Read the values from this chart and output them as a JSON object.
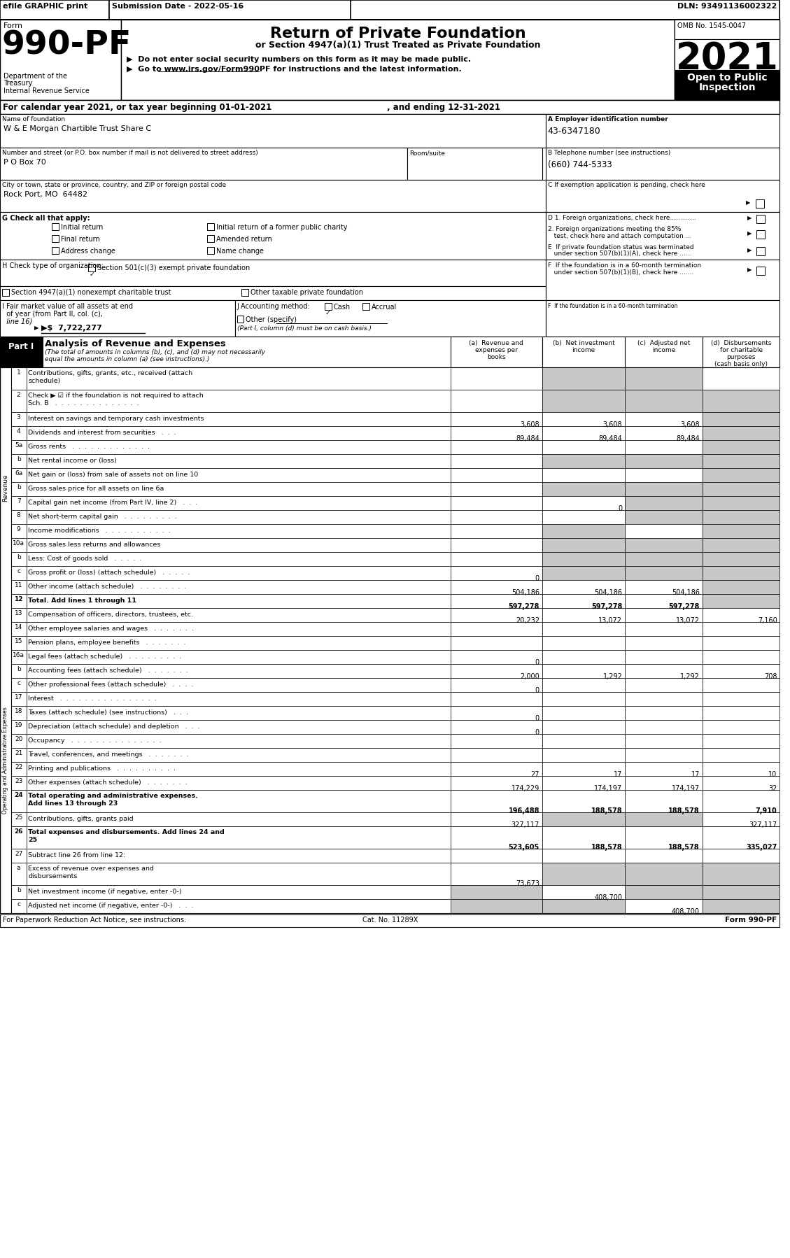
{
  "title_form": "990-PF",
  "title_main": "Return of Private Foundation",
  "title_sub": "or Section 4947(a)(1) Trust Treated as Private Foundation",
  "bullet1": "▶  Do not enter social security numbers on this form as it may be made public.",
  "bullet2": "▶  Go to www.irs.gov/Form990PF for instructions and the latest information.",
  "year": "2021",
  "open_text": "Open to Public\nInspection",
  "efile_text": "efile GRAPHIC print",
  "submission_text": "Submission Date - 2022-05-16",
  "dln_text": "DLN: 93491136002322",
  "omb_text": "OMB No. 1545-0047",
  "dept1": "Department of the",
  "dept2": "Treasury",
  "dept3": "Internal Revenue Service",
  "form_label": "Form",
  "cal_year_text": "For calendar year 2021, or tax year beginning 01-01-2021",
  "ending_text": ", and ending 12-31-2021",
  "name_label": "Name of foundation",
  "name_value": "W & E Morgan Chartible Trust Share C",
  "ein_label": "A Employer identification number",
  "ein_value": "43-6347180",
  "addr_label": "Number and street (or P.O. box number if mail is not delivered to street address)",
  "room_label": "Room/suite",
  "addr_value": "P O Box 70",
  "phone_label": "B Telephone number (see instructions)",
  "phone_value": "(660) 744-5333",
  "city_label": "City or town, state or province, country, and ZIP or foreign postal code",
  "city_value": "Rock Port, MO  64482",
  "c_label": "C If exemption application is pending, check here",
  "g_label": "G Check all that apply:",
  "check_items": [
    "Initial return",
    "Initial return of a former public charity",
    "Final return",
    "Amended return",
    "Address change",
    "Name change"
  ],
  "d1_label": "D 1. Foreign organizations, check here.............",
  "h_checked": "Section 501(c)(3) exempt private foundation",
  "h_unchecked1": "Section 4947(a)(1) nonexempt charitable trust",
  "h_unchecked2": "Other taxable private foundation",
  "i_value": "7,722,277",
  "j_cash": "Cash",
  "j_accrual": "Accrual",
  "j_other": "Other (specify)",
  "j_note": "(Part I, column (d) must be on cash basis.)",
  "part1_label": "Part I",
  "part1_title": "Analysis of Revenue and Expenses",
  "footer_left": "For Paperwork Reduction Act Notice, see instructions.",
  "footer_cat": "Cat. No. 11289X",
  "footer_form": "Form 990-PF",
  "shade_color": "#c8c8c8",
  "rows": [
    {
      "num": "1",
      "label": "Contributions, gifts, grants, etc., received (attach\nschedule)",
      "a": "",
      "b": "",
      "c": "",
      "d": "",
      "shade_a": false,
      "shaded_b": true,
      "shaded_c": true,
      "shaded_d": false,
      "tall": true
    },
    {
      "num": "2",
      "label": "Check ▶ ☑ if the foundation is not required to attach\nSch. B   .  .  .  .  .  .  .  .  .  .  .  .  .  .",
      "a": "",
      "b": "",
      "c": "",
      "d": "",
      "shade_a": false,
      "shaded_b": true,
      "shaded_c": true,
      "shaded_d": true,
      "tall": true
    },
    {
      "num": "3",
      "label": "Interest on savings and temporary cash investments",
      "a": "3,608",
      "b": "3,608",
      "c": "3,608",
      "d": "",
      "shade_a": false,
      "shaded_b": false,
      "shaded_c": false,
      "shaded_d": true,
      "tall": false
    },
    {
      "num": "4",
      "label": "Dividends and interest from securities   .  .  .",
      "a": "89,484",
      "b": "89,484",
      "c": "89,484",
      "d": "",
      "shade_a": false,
      "shaded_b": false,
      "shaded_c": false,
      "shaded_d": true,
      "tall": false
    },
    {
      "num": "5a",
      "label": "Gross rents   .  .  .  .  .  .  .  .  .  .  .  .  .",
      "a": "",
      "b": "",
      "c": "",
      "d": "",
      "shade_a": false,
      "shaded_b": false,
      "shaded_c": false,
      "shaded_d": true,
      "tall": false
    },
    {
      "num": "b",
      "label": "Net rental income or (loss)",
      "a": "",
      "b": "",
      "c": "",
      "d": "",
      "shade_a": false,
      "shaded_b": true,
      "shaded_c": true,
      "shaded_d": true,
      "tall": false
    },
    {
      "num": "6a",
      "label": "Net gain or (loss) from sale of assets not on line 10",
      "a": "",
      "b": "",
      "c": "",
      "d": "",
      "shade_a": false,
      "shaded_b": false,
      "shaded_c": false,
      "shaded_d": true,
      "tall": false
    },
    {
      "num": "b",
      "label": "Gross sales price for all assets on line 6a",
      "a": "",
      "b": "",
      "c": "",
      "d": "",
      "shade_a": false,
      "shaded_b": true,
      "shaded_c": true,
      "shaded_d": true,
      "tall": false
    },
    {
      "num": "7",
      "label": "Capital gain net income (from Part IV, line 2)   .  .  .",
      "a": "",
      "b": "0",
      "c": "",
      "d": "",
      "shade_a": false,
      "shaded_b": false,
      "shaded_c": true,
      "shaded_d": true,
      "tall": false
    },
    {
      "num": "8",
      "label": "Net short-term capital gain   .  .  .  .  .  .  .  .  .",
      "a": "",
      "b": "",
      "c": "",
      "d": "",
      "shade_a": false,
      "shaded_b": false,
      "shaded_c": true,
      "shaded_d": true,
      "tall": false
    },
    {
      "num": "9",
      "label": "Income modifications   .  .  .  .  .  .  .  .  .  .  .",
      "a": "",
      "b": "",
      "c": "",
      "d": "",
      "shade_a": false,
      "shaded_b": true,
      "shaded_c": false,
      "shaded_d": true,
      "tall": false
    },
    {
      "num": "10a",
      "label": "Gross sales less returns and allowances",
      "a": "",
      "b": "",
      "c": "",
      "d": "",
      "shade_a": false,
      "shaded_b": true,
      "shaded_c": true,
      "shaded_d": true,
      "tall": false
    },
    {
      "num": "b",
      "label": "Less: Cost of goods sold   .  .  .  .  .",
      "a": "",
      "b": "",
      "c": "",
      "d": "",
      "shade_a": false,
      "shaded_b": true,
      "shaded_c": true,
      "shaded_d": true,
      "tall": false
    },
    {
      "num": "c",
      "label": "Gross profit or (loss) (attach schedule)   .  .  .  .  .",
      "a": "0",
      "b": "",
      "c": "",
      "d": "",
      "shade_a": false,
      "shaded_b": true,
      "shaded_c": true,
      "shaded_d": true,
      "tall": false
    },
    {
      "num": "11",
      "label": "Other income (attach schedule)   .  .  .  .  .  .  .  .",
      "a": "504,186",
      "b": "504,186",
      "c": "504,186",
      "d": "",
      "shade_a": false,
      "shaded_b": false,
      "shaded_c": false,
      "shaded_d": true,
      "tall": false
    },
    {
      "num": "12",
      "label": "Total. Add lines 1 through 11",
      "a": "597,278",
      "b": "597,278",
      "c": "597,278",
      "d": "",
      "shade_a": false,
      "shaded_b": false,
      "shaded_c": false,
      "shaded_d": true,
      "tall": false,
      "bold": true
    },
    {
      "num": "13",
      "label": "Compensation of officers, directors, trustees, etc.",
      "a": "20,232",
      "b": "13,072",
      "c": "13,072",
      "d": "7,160",
      "shade_a": false,
      "shaded_b": false,
      "shaded_c": false,
      "shaded_d": false,
      "tall": false
    },
    {
      "num": "14",
      "label": "Other employee salaries and wages   .  .  .  .  .  .  .",
      "a": "",
      "b": "",
      "c": "",
      "d": "",
      "shade_a": false,
      "shaded_b": false,
      "shaded_c": false,
      "shaded_d": false,
      "tall": false
    },
    {
      "num": "15",
      "label": "Pension plans, employee benefits   .  .  .  .  .  .  .",
      "a": "",
      "b": "",
      "c": "",
      "d": "",
      "shade_a": false,
      "shaded_b": false,
      "shaded_c": false,
      "shaded_d": false,
      "tall": false
    },
    {
      "num": "16a",
      "label": "Legal fees (attach schedule)   .  .  .  .  .  .  .  .  .",
      "a": "0",
      "b": "",
      "c": "",
      "d": "",
      "shade_a": false,
      "shaded_b": false,
      "shaded_c": false,
      "shaded_d": false,
      "tall": false
    },
    {
      "num": "b",
      "label": "Accounting fees (attach schedule)   .  .  .  .  .  .  .",
      "a": "2,000",
      "b": "1,292",
      "c": "1,292",
      "d": "708",
      "shade_a": false,
      "shaded_b": false,
      "shaded_c": false,
      "shaded_d": false,
      "tall": false
    },
    {
      "num": "c",
      "label": "Other professional fees (attach schedule)   .  .  .  .",
      "a": "0",
      "b": "",
      "c": "",
      "d": "",
      "shade_a": false,
      "shaded_b": false,
      "shaded_c": false,
      "shaded_d": false,
      "tall": false
    },
    {
      "num": "17",
      "label": "Interest   .  .  .  .  .  .  .  .  .  .  .  .  .  .  .  .",
      "a": "",
      "b": "",
      "c": "",
      "d": "",
      "shade_a": false,
      "shaded_b": false,
      "shaded_c": false,
      "shaded_d": false,
      "tall": false
    },
    {
      "num": "18",
      "label": "Taxes (attach schedule) (see instructions)   .  .  .",
      "a": "0",
      "b": "",
      "c": "",
      "d": "",
      "shade_a": false,
      "shaded_b": false,
      "shaded_c": false,
      "shaded_d": false,
      "tall": false
    },
    {
      "num": "19",
      "label": "Depreciation (attach schedule) and depletion   .  .  .",
      "a": "0",
      "b": "",
      "c": "",
      "d": "",
      "shade_a": false,
      "shaded_b": false,
      "shaded_c": false,
      "shaded_d": false,
      "tall": false
    },
    {
      "num": "20",
      "label": "Occupancy   .  .  .  .  .  .  .  .  .  .  .  .  .  .  .",
      "a": "",
      "b": "",
      "c": "",
      "d": "",
      "shade_a": false,
      "shaded_b": false,
      "shaded_c": false,
      "shaded_d": false,
      "tall": false
    },
    {
      "num": "21",
      "label": "Travel, conferences, and meetings   .  .  .  .  .  .  .",
      "a": "",
      "b": "",
      "c": "",
      "d": "",
      "shade_a": false,
      "shaded_b": false,
      "shaded_c": false,
      "shaded_d": false,
      "tall": false
    },
    {
      "num": "22",
      "label": "Printing and publications   .  .  .  .  .  .  .  .  .  .",
      "a": "27",
      "b": "17",
      "c": "17",
      "d": "10",
      "shade_a": false,
      "shaded_b": false,
      "shaded_c": false,
      "shaded_d": false,
      "tall": false
    },
    {
      "num": "23",
      "label": "Other expenses (attach schedule)   .  .  .  .  .  .  .",
      "a": "174,229",
      "b": "174,197",
      "c": "174,197",
      "d": "32",
      "shade_a": false,
      "shaded_b": false,
      "shaded_c": false,
      "shaded_d": false,
      "tall": false
    },
    {
      "num": "24",
      "label": "Total operating and administrative expenses.\nAdd lines 13 through 23",
      "a": "196,488",
      "b": "188,578",
      "c": "188,578",
      "d": "7,910",
      "shade_a": false,
      "shaded_b": false,
      "shaded_c": false,
      "shaded_d": false,
      "tall": true,
      "bold": true
    },
    {
      "num": "25",
      "label": "Contributions, gifts, grants paid",
      "a": "327,117",
      "b": "",
      "c": "",
      "d": "327,117",
      "shade_a": false,
      "shaded_b": true,
      "shaded_c": true,
      "shaded_d": false,
      "tall": false
    },
    {
      "num": "26",
      "label": "Total expenses and disbursements. Add lines 24 and\n25",
      "a": "523,605",
      "b": "188,578",
      "c": "188,578",
      "d": "335,027",
      "shade_a": false,
      "shaded_b": false,
      "shaded_c": false,
      "shaded_d": false,
      "tall": true,
      "bold": true
    },
    {
      "num": "27",
      "label": "Subtract line 26 from line 12:",
      "a": "",
      "b": "",
      "c": "",
      "d": "",
      "shade_a": false,
      "shaded_b": false,
      "shaded_c": false,
      "shaded_d": false,
      "tall": false
    },
    {
      "num": "a",
      "label": "Excess of revenue over expenses and\ndisbursements",
      "a": "73,673",
      "b": "",
      "c": "",
      "d": "",
      "shade_a": false,
      "shaded_b": true,
      "shaded_c": true,
      "shaded_d": true,
      "tall": true
    },
    {
      "num": "b",
      "label": "Net investment income (if negative, enter -0-)",
      "a": "",
      "b": "408,700",
      "c": "",
      "d": "",
      "shade_a": true,
      "shaded_b": false,
      "shaded_c": true,
      "shaded_d": true,
      "tall": false
    },
    {
      "num": "c",
      "label": "Adjusted net income (if negative, enter -0-)   .  .  .",
      "a": "",
      "b": "",
      "c": "408,700",
      "d": "",
      "shade_a": true,
      "shaded_b": true,
      "shaded_c": false,
      "shaded_d": true,
      "tall": false
    }
  ]
}
